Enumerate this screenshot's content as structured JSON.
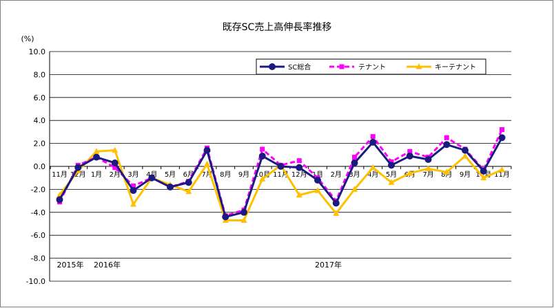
{
  "chart_data": {
    "type": "line",
    "title": "既存SC売上高伸長率推移",
    "ylabel": "(%)",
    "ylim": [
      -10,
      10
    ],
    "ytick_step": 2,
    "ytick_labels": [
      "10.0",
      "8.0",
      "6.0",
      "4.0",
      "2.0",
      "0.0",
      "-2.0",
      "-4.0",
      "-6.0",
      "-8.0",
      "-10.0"
    ],
    "categories": [
      "11月",
      "12月",
      "1月",
      "2月",
      "3月",
      "4月",
      "5月",
      "6月",
      "7月",
      "8月",
      "9月",
      "10月",
      "11月",
      "12月",
      "1月",
      "2月",
      "3月",
      "4月",
      "5月",
      "6月",
      "7月",
      "8月",
      "9月",
      "10月",
      "11月"
    ],
    "year_labels": [
      {
        "text": "2015年",
        "index": 0
      },
      {
        "text": "2016年",
        "index": 2
      },
      {
        "text": "2017年",
        "index": 14
      }
    ],
    "grid": true,
    "legend_position": "top-right",
    "series": [
      {
        "name": "SC総合",
        "color": "#1a1a80",
        "marker": "circle",
        "dash": "solid",
        "values": [
          -2.9,
          -0.1,
          0.8,
          0.3,
          -2.1,
          -1.0,
          -1.8,
          -1.4,
          1.4,
          -4.4,
          -4.0,
          0.9,
          0.0,
          -0.1,
          -1.2,
          -3.2,
          0.3,
          2.1,
          0.1,
          0.9,
          0.6,
          1.9,
          1.4,
          -0.4,
          2.5
        ]
      },
      {
        "name": "テナント",
        "color": "#ff00ff",
        "marker": "square",
        "dash": "dashed",
        "values": [
          -3.1,
          0.1,
          0.8,
          -0.1,
          -1.7,
          -1.0,
          -1.8,
          -1.3,
          1.6,
          -4.3,
          -3.8,
          1.5,
          0.1,
          0.5,
          -1.0,
          -3.0,
          0.8,
          2.6,
          0.4,
          1.3,
          0.8,
          2.5,
          1.5,
          -0.3,
          3.2
        ]
      },
      {
        "name": "キーテナント",
        "color": "#ffc000",
        "marker": "triangle",
        "dash": "solid",
        "values": [
          -2.5,
          -0.4,
          1.3,
          1.4,
          -3.3,
          -1.0,
          -1.6,
          -2.2,
          0.2,
          -4.7,
          -4.7,
          -1.1,
          0.1,
          -2.5,
          -2.1,
          -4.1,
          -2.0,
          -0.1,
          -1.4,
          -0.6,
          -0.2,
          -0.5,
          0.9,
          -1.0,
          -0.3
        ]
      }
    ]
  }
}
